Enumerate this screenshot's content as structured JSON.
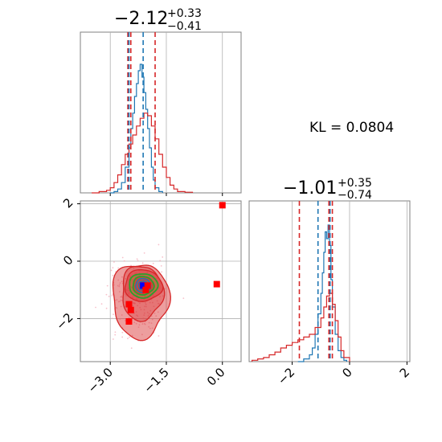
{
  "chart_data": [
    {
      "type": "histogram",
      "panel": "marginal-x",
      "title": {
        "main": "−2.12",
        "sup": "+0.33",
        "sub": "−0.41"
      },
      "xlim": [
        -3.8,
        0.5
      ],
      "grid": true,
      "series": [
        {
          "name": "",
          "color": "#1f77b4",
          "x": [
            -3.0,
            -2.9,
            -2.8,
            -2.7,
            -2.6,
            -2.5,
            -2.45,
            -2.4,
            -2.35,
            -2.3,
            -2.25,
            -2.2,
            -2.15,
            -2.1,
            -2.05,
            -2.0,
            -1.95,
            -1.9,
            -1.85,
            -1.8,
            -1.7,
            -1.6
          ],
          "y": [
            0,
            0.01,
            0.03,
            0.08,
            0.2,
            0.35,
            0.5,
            0.62,
            0.75,
            0.85,
            0.95,
            1.0,
            0.9,
            0.78,
            0.65,
            0.5,
            0.35,
            0.2,
            0.1,
            0.04,
            0.01,
            0
          ]
        },
        {
          "name": "",
          "color": "#d62728",
          "x": [
            -3.5,
            -3.3,
            -3.1,
            -3.0,
            -2.9,
            -2.8,
            -2.7,
            -2.6,
            -2.5,
            -2.4,
            -2.3,
            -2.2,
            -2.1,
            -2.0,
            -1.9,
            -1.8,
            -1.7,
            -1.6,
            -1.5,
            -1.4,
            -1.3,
            -1.2,
            -1.0,
            -0.8
          ],
          "y": [
            0,
            0.01,
            0.02,
            0.04,
            0.08,
            0.14,
            0.22,
            0.3,
            0.38,
            0.45,
            0.52,
            0.58,
            0.62,
            0.6,
            0.52,
            0.42,
            0.3,
            0.2,
            0.12,
            0.06,
            0.03,
            0.01,
            0.005,
            0
          ]
        }
      ],
      "vlines": [
        {
          "x": -2.53,
          "color": "#d62728"
        },
        {
          "x": -2.45,
          "color": "#d62728"
        },
        {
          "x": -2.5,
          "color": "#1f77b4"
        },
        {
          "x": -2.12,
          "color": "#1f77b4"
        },
        {
          "x": -1.8,
          "color": "#d62728"
        }
      ]
    },
    {
      "type": "contour",
      "panel": "joint",
      "xlim": [
        -3.8,
        0.5
      ],
      "ylim": [
        -3.5,
        2.1
      ],
      "xticks": [
        "−3.0",
        "−1.5",
        "0.0"
      ],
      "yticks": [
        "2",
        "0",
        "−2"
      ],
      "grid": true,
      "markers": [
        {
          "x": -2.12,
          "y": -0.85,
          "color": "#0000ff"
        },
        {
          "x": -2.0,
          "y": -0.85,
          "color": "#ff0000"
        },
        {
          "x": -2.05,
          "y": -1.0,
          "color": "#ff0000"
        },
        {
          "x": -2.5,
          "y": -1.5,
          "color": "#ff0000"
        },
        {
          "x": -2.45,
          "y": -1.7,
          "color": "#ff0000"
        },
        {
          "x": -2.5,
          "y": -2.1,
          "color": "#ff0000"
        },
        {
          "x": -0.15,
          "y": -0.8,
          "color": "#ff0000"
        },
        {
          "x": 0.0,
          "y": 1.95,
          "color": "#ff0000"
        }
      ]
    },
    {
      "type": "histogram",
      "panel": "marginal-y",
      "title": {
        "main": "−1.01",
        "sup": "+0.35",
        "sub": "−0.74"
      },
      "xlim": [
        -3.5,
        2.1
      ],
      "xticks": [
        "−2",
        "0",
        "2"
      ],
      "grid": true,
      "series": [
        {
          "name": "",
          "color": "#1f77b4",
          "x": [
            -1.8,
            -1.6,
            -1.4,
            -1.3,
            -1.2,
            -1.1,
            -1.0,
            -0.95,
            -0.9,
            -0.85,
            -0.8,
            -0.75,
            -0.7,
            -0.65,
            -0.6,
            -0.5,
            -0.4,
            -0.3,
            -0.2,
            -0.1
          ],
          "y": [
            0,
            0.02,
            0.05,
            0.1,
            0.2,
            0.35,
            0.5,
            0.65,
            0.8,
            0.95,
            0.9,
            1.0,
            0.85,
            0.6,
            0.4,
            0.2,
            0.08,
            0.03,
            0.01,
            0
          ]
        },
        {
          "name": "",
          "color": "#d62728",
          "x": [
            -3.4,
            -3.2,
            -3.0,
            -2.8,
            -2.6,
            -2.4,
            -2.2,
            -2.0,
            -1.8,
            -1.6,
            -1.4,
            -1.2,
            -1.0,
            -0.9,
            -0.8,
            -0.7,
            -0.6,
            -0.5,
            -0.4,
            -0.3,
            -0.2,
            0.0
          ],
          "y": [
            0.01,
            0.02,
            0.03,
            0.05,
            0.07,
            0.1,
            0.12,
            0.14,
            0.16,
            0.18,
            0.2,
            0.25,
            0.32,
            0.4,
            0.48,
            0.5,
            0.42,
            0.3,
            0.18,
            0.08,
            0.03,
            0
          ]
        }
      ],
      "vlines": [
        {
          "x": -1.75,
          "color": "#d62728"
        },
        {
          "x": -1.1,
          "color": "#1f77b4"
        },
        {
          "x": -0.68,
          "color": "#1f77b4"
        },
        {
          "x": -0.6,
          "color": "#d62728"
        },
        {
          "x": -0.72,
          "color": "#d62728"
        }
      ]
    }
  ],
  "annotation": {
    "text": "KL = 0.0804"
  },
  "colors": {
    "blue": "#1f77b4",
    "red": "#d62728",
    "green": "#2ca02c"
  }
}
